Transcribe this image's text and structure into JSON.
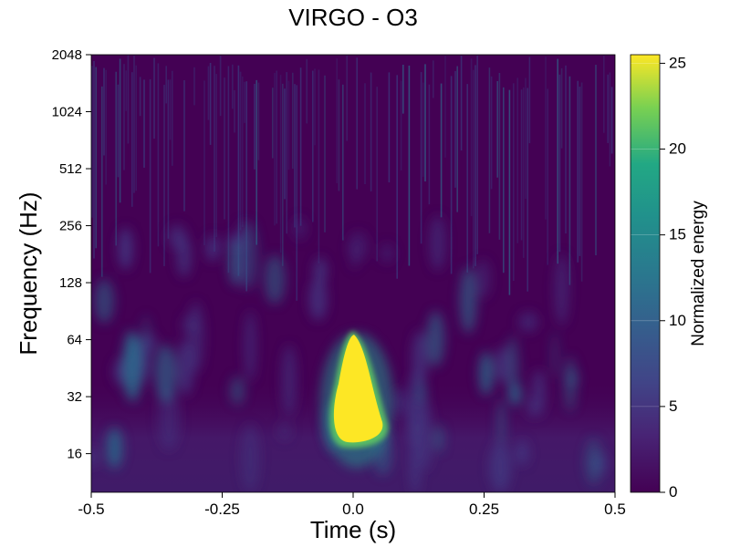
{
  "chart_data": {
    "type": "heatmap",
    "title": "VIRGO - O3",
    "xlabel": "Time (s)",
    "ylabel": "Frequency (Hz)",
    "xlim": [
      -0.5,
      0.5
    ],
    "ylim": [
      10,
      2048
    ],
    "yscale": "log2",
    "xticks": [
      "-0.5",
      "-0.25",
      "0.0",
      "0.25",
      "0.5"
    ],
    "xtick_values": [
      -0.5,
      -0.25,
      0.0,
      0.25,
      0.5
    ],
    "yticks": [
      "16",
      "32",
      "64",
      "128",
      "256",
      "512",
      "1024",
      "2048"
    ],
    "ytick_values": [
      16,
      32,
      64,
      128,
      256,
      512,
      1024,
      2048
    ],
    "colorbar": {
      "label": "Normalized energy",
      "colormap": "viridis",
      "range": [
        0,
        25.5
      ],
      "ticks": [
        "0",
        "5",
        "10",
        "15",
        "20",
        "25"
      ],
      "tick_values": [
        0,
        5,
        10,
        15,
        20,
        25
      ]
    },
    "features": [
      {
        "name": "bright transient",
        "time_s": 0.0,
        "freq_hz_min": 18,
        "freq_hz_max": 68,
        "energy": 25.5
      },
      {
        "name": "background noise",
        "energy_range": [
          0,
          5
        ]
      }
    ],
    "colors": {
      "low": "#440154",
      "mid": "#21918c",
      "high": "#fde725"
    }
  }
}
